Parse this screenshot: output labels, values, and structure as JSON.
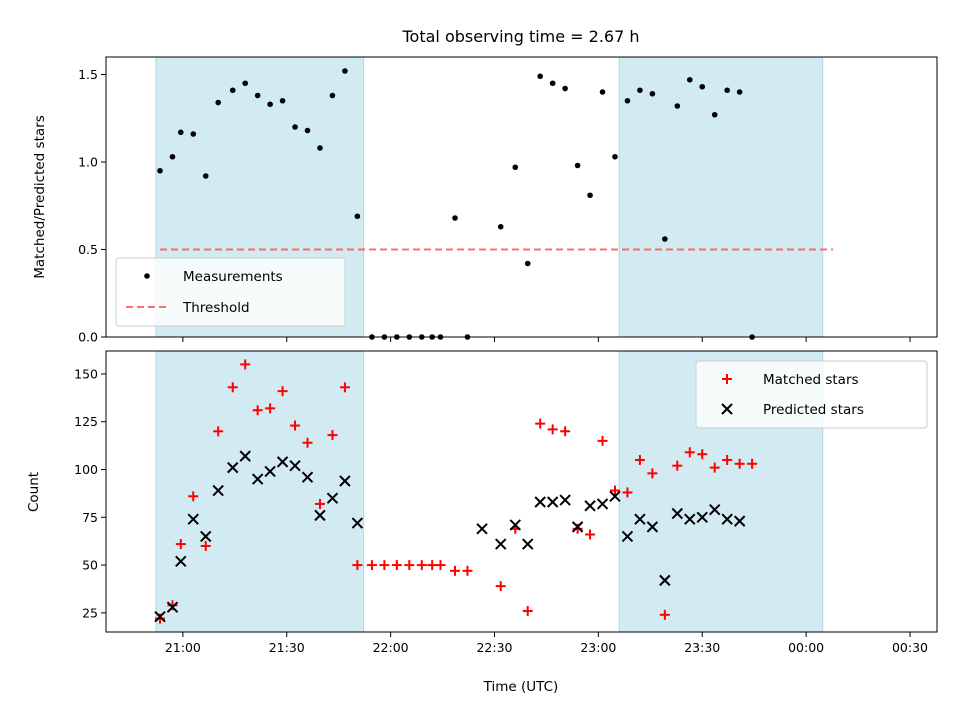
{
  "title": "Total observing time = 2.67 h",
  "colors": {
    "span": "#add8e6",
    "measurement": "#000000",
    "threshold": "#ff5555",
    "matched": "#ff0000",
    "predicted": "#000000",
    "axis": "#000000"
  },
  "chart_data": [
    {
      "type": "scatter",
      "ylabel": "Matched/Predicted stars",
      "xlim": [
        20.63,
        24.63
      ],
      "ylim": [
        0,
        1.6
      ],
      "yticks": [
        0.0,
        0.5,
        1.0,
        1.5
      ],
      "ytick_labels": [
        "0.0",
        "0.5",
        "1.0",
        "1.5"
      ],
      "legend_position": "lower-left",
      "spans": [
        [
          20.87,
          21.87
        ],
        [
          23.1,
          24.08
        ]
      ],
      "series": [
        {
          "name": "Measurements",
          "marker": "dot",
          "points": [
            [
              20.89,
              0.95
            ],
            [
              20.95,
              1.03
            ],
            [
              20.99,
              1.17
            ],
            [
              21.05,
              1.16
            ],
            [
              21.11,
              0.92
            ],
            [
              21.17,
              1.34
            ],
            [
              21.24,
              1.41
            ],
            [
              21.3,
              1.45
            ],
            [
              21.36,
              1.38
            ],
            [
              21.42,
              1.33
            ],
            [
              21.48,
              1.35
            ],
            [
              21.54,
              1.2
            ],
            [
              21.6,
              1.18
            ],
            [
              21.66,
              1.08
            ],
            [
              21.72,
              1.38
            ],
            [
              21.78,
              1.52
            ],
            [
              21.84,
              0.69
            ],
            [
              21.91,
              0.0
            ],
            [
              21.97,
              0.0
            ],
            [
              22.03,
              0.0
            ],
            [
              22.09,
              0.0
            ],
            [
              22.15,
              0.0
            ],
            [
              22.2,
              0.0
            ],
            [
              22.24,
              0.0
            ],
            [
              22.37,
              0.0
            ],
            [
              22.31,
              0.68
            ],
            [
              22.53,
              0.63
            ],
            [
              22.6,
              0.97
            ],
            [
              22.66,
              0.42
            ],
            [
              22.72,
              1.49
            ],
            [
              22.78,
              1.45
            ],
            [
              22.84,
              1.42
            ],
            [
              22.9,
              0.98
            ],
            [
              22.96,
              0.81
            ],
            [
              23.02,
              1.4
            ],
            [
              23.08,
              1.03
            ],
            [
              23.14,
              1.35
            ],
            [
              23.2,
              1.41
            ],
            [
              23.26,
              1.39
            ],
            [
              23.32,
              0.56
            ],
            [
              23.38,
              1.32
            ],
            [
              23.44,
              1.47
            ],
            [
              23.5,
              1.43
            ],
            [
              23.56,
              1.27
            ],
            [
              23.62,
              1.41
            ],
            [
              23.68,
              1.4
            ],
            [
              23.74,
              0.0
            ]
          ]
        },
        {
          "name": "Threshold",
          "type": "line",
          "style": "dashed",
          "x": [
            20.89,
            24.13
          ],
          "y": [
            0.5,
            0.5
          ]
        }
      ]
    },
    {
      "type": "scatter",
      "xlabel": "Time (UTC)",
      "ylabel": "Count",
      "xlim": [
        20.63,
        24.63
      ],
      "ylim": [
        15,
        162
      ],
      "xticks": [
        21.0,
        21.5,
        22.0,
        22.5,
        23.0,
        23.5,
        24.0,
        24.5
      ],
      "xtick_labels": [
        "21:00",
        "21:30",
        "22:00",
        "22:30",
        "23:00",
        "23:30",
        "00:00",
        "00:30"
      ],
      "yticks": [
        25,
        50,
        75,
        100,
        125,
        150
      ],
      "ytick_labels": [
        "25",
        "50",
        "75",
        "100",
        "125",
        "150"
      ],
      "legend_position": "upper-right",
      "spans": [
        [
          20.87,
          21.87
        ],
        [
          23.1,
          24.08
        ]
      ],
      "series": [
        {
          "name": "Matched stars",
          "marker": "plus",
          "points": [
            [
              20.89,
              22
            ],
            [
              20.95,
              29
            ],
            [
              20.99,
              61
            ],
            [
              21.05,
              86
            ],
            [
              21.11,
              60
            ],
            [
              21.17,
              120
            ],
            [
              21.24,
              143
            ],
            [
              21.3,
              155
            ],
            [
              21.36,
              131
            ],
            [
              21.42,
              132
            ],
            [
              21.48,
              141
            ],
            [
              21.54,
              123
            ],
            [
              21.6,
              114
            ],
            [
              21.66,
              82
            ],
            [
              21.72,
              118
            ],
            [
              21.78,
              143
            ],
            [
              21.84,
              50
            ],
            [
              21.91,
              50
            ],
            [
              21.97,
              50
            ],
            [
              22.03,
              50
            ],
            [
              22.09,
              50
            ],
            [
              22.15,
              50
            ],
            [
              22.2,
              50
            ],
            [
              22.24,
              50
            ],
            [
              22.31,
              47
            ],
            [
              22.37,
              47
            ],
            [
              22.53,
              39
            ],
            [
              22.6,
              69
            ],
            [
              22.66,
              26
            ],
            [
              22.72,
              124
            ],
            [
              22.78,
              121
            ],
            [
              22.84,
              120
            ],
            [
              22.9,
              69
            ],
            [
              22.96,
              66
            ],
            [
              23.02,
              115
            ],
            [
              23.08,
              89
            ],
            [
              23.14,
              88
            ],
            [
              23.2,
              105
            ],
            [
              23.26,
              98
            ],
            [
              23.32,
              24
            ],
            [
              23.38,
              102
            ],
            [
              23.44,
              109
            ],
            [
              23.5,
              108
            ],
            [
              23.56,
              101
            ],
            [
              23.62,
              105
            ],
            [
              23.68,
              103
            ],
            [
              23.74,
              103
            ]
          ]
        },
        {
          "name": "Predicted stars",
          "marker": "x",
          "points": [
            [
              20.89,
              23
            ],
            [
              20.95,
              28
            ],
            [
              20.99,
              52
            ],
            [
              21.05,
              74
            ],
            [
              21.11,
              65
            ],
            [
              21.17,
              89
            ],
            [
              21.24,
              101
            ],
            [
              21.3,
              107
            ],
            [
              21.36,
              95
            ],
            [
              21.42,
              99
            ],
            [
              21.48,
              104
            ],
            [
              21.54,
              102
            ],
            [
              21.6,
              96
            ],
            [
              21.66,
              76
            ],
            [
              21.72,
              85
            ],
            [
              21.78,
              94
            ],
            [
              21.84,
              72
            ],
            [
              22.44,
              69
            ],
            [
              22.53,
              61
            ],
            [
              22.6,
              71
            ],
            [
              22.66,
              61
            ],
            [
              22.72,
              83
            ],
            [
              22.78,
              83
            ],
            [
              22.84,
              84
            ],
            [
              22.9,
              70
            ],
            [
              22.96,
              81
            ],
            [
              23.02,
              82
            ],
            [
              23.08,
              86
            ],
            [
              23.14,
              65
            ],
            [
              23.2,
              74
            ],
            [
              23.26,
              70
            ],
            [
              23.32,
              42
            ],
            [
              23.38,
              77
            ],
            [
              23.44,
              74
            ],
            [
              23.5,
              75
            ],
            [
              23.56,
              79
            ],
            [
              23.62,
              74
            ],
            [
              23.68,
              73
            ]
          ]
        }
      ]
    }
  ]
}
